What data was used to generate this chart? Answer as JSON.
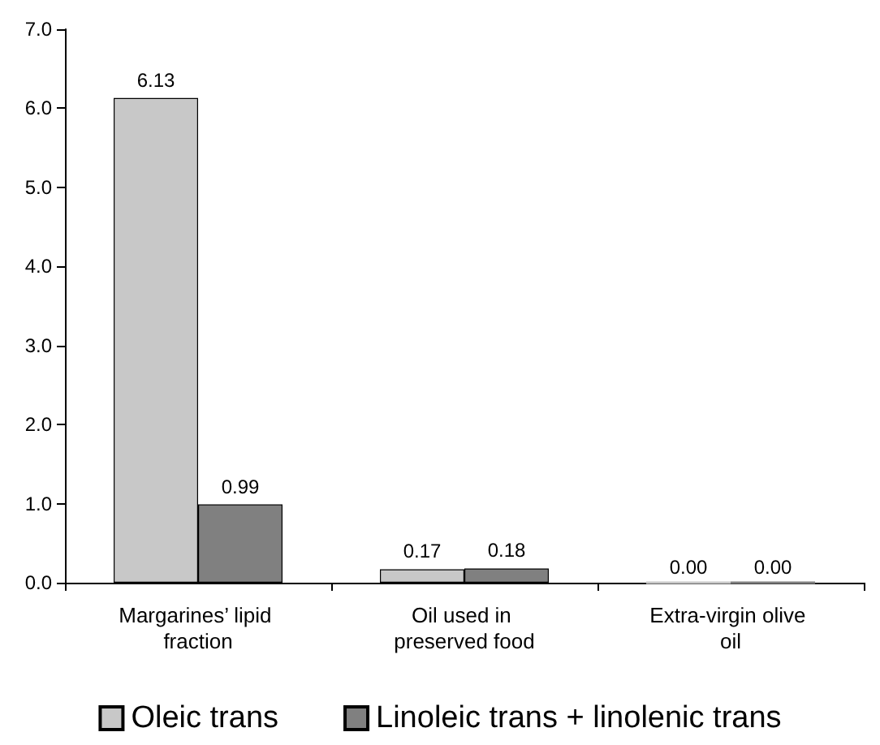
{
  "chart_data": {
    "type": "bar",
    "categories": [
      "Margarines’ lipid fraction",
      "Oil used in preserved food",
      "Extra-virgin olive oil"
    ],
    "series": [
      {
        "name": "Oleic trans",
        "color": "#c8c8c8",
        "values": [
          6.13,
          0.17,
          0.0
        ],
        "value_labels": [
          "6.13",
          "0.17",
          "0.00"
        ]
      },
      {
        "name": "Linoleic trans + linolenic trans",
        "color": "#808080",
        "values": [
          0.99,
          0.18,
          0.0
        ],
        "value_labels": [
          "0.99",
          "0.18",
          "0.00"
        ]
      }
    ],
    "ylim": [
      0,
      7
    ],
    "yticks": [
      {
        "value": 0,
        "label": "0.0"
      },
      {
        "value": 1,
        "label": "1.0"
      },
      {
        "value": 2,
        "label": "2.0"
      },
      {
        "value": 3,
        "label": "3.0"
      },
      {
        "value": 4,
        "label": "4.0"
      },
      {
        "value": 5,
        "label": "5.0"
      },
      {
        "value": 6,
        "label": "6.0"
      },
      {
        "value": 7,
        "label": "7.0"
      }
    ],
    "grid": false,
    "legend": "bottom"
  }
}
